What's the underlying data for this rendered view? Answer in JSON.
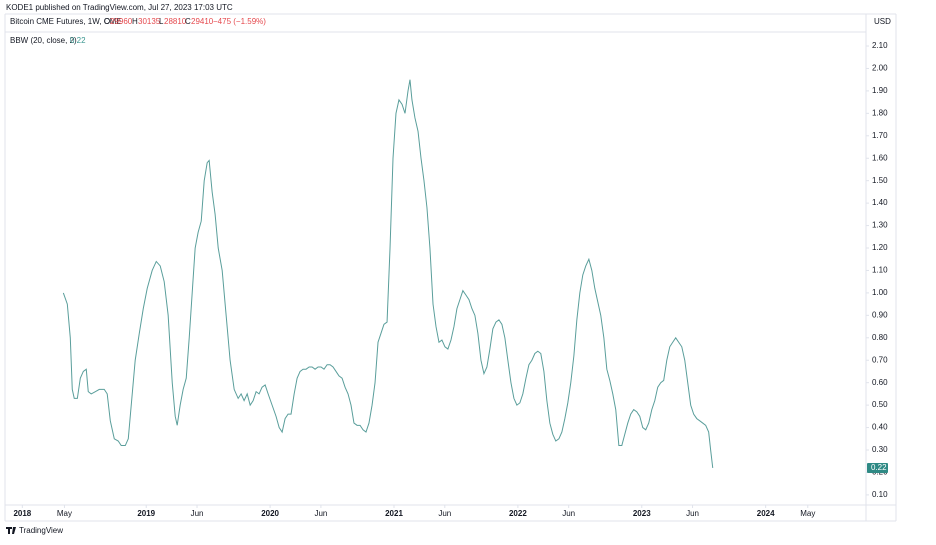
{
  "header": {
    "published": "KODE1 published on TradingView.com, Jul 27, 2023 17:03 UTC",
    "symbol": "Bitcoin CME Futures, 1W, CME",
    "open_label": "O",
    "open": 29960,
    "high_label": "H",
    "high": 30135,
    "low_label": "L",
    "low": 28810,
    "close_label": "C",
    "close": 29410,
    "change": "−475 (−1.59%)",
    "currency": "USD"
  },
  "footer": {
    "brand": "TradingView"
  },
  "chart_data": {
    "type": "line",
    "grid": false,
    "legend": "top-left",
    "x": [
      2018.331,
      2018.363,
      2018.387,
      2018.403,
      2018.419,
      2018.444,
      2018.468,
      2018.492,
      2018.516,
      2018.532,
      2018.556,
      2018.589,
      2018.621,
      2018.661,
      2018.685,
      2018.71,
      2018.742,
      2018.774,
      2018.798,
      2018.831,
      2018.855,
      2018.879,
      2018.911,
      2018.944,
      2018.976,
      2019.008,
      2019.048,
      2019.081,
      2019.113,
      2019.145,
      2019.177,
      2019.21,
      2019.234,
      2019.25,
      2019.274,
      2019.298,
      2019.323,
      2019.347,
      2019.371,
      2019.395,
      2019.419,
      2019.444,
      2019.468,
      2019.492,
      2019.508,
      2019.532,
      2019.556,
      2019.581,
      2019.613,
      2019.645,
      2019.677,
      2019.71,
      2019.742,
      2019.766,
      2019.79,
      2019.815,
      2019.839,
      2019.863,
      2019.887,
      2019.911,
      2019.935,
      2019.96,
      2019.984,
      2020.016,
      2020.048,
      2020.073,
      2020.097,
      2020.121,
      2020.145,
      2020.169,
      2020.194,
      2020.218,
      2020.242,
      2020.266,
      2020.29,
      2020.315,
      2020.339,
      2020.363,
      2020.387,
      2020.411,
      2020.435,
      2020.46,
      2020.484,
      2020.508,
      2020.532,
      2020.556,
      2020.581,
      2020.605,
      2020.629,
      2020.653,
      2020.677,
      2020.702,
      2020.726,
      2020.75,
      2020.774,
      2020.798,
      2020.823,
      2020.847,
      2020.871,
      2020.895,
      2020.919,
      2020.944,
      2020.968,
      2020.992,
      2021.016,
      2021.04,
      2021.065,
      2021.089,
      2021.113,
      2021.129,
      2021.145,
      2021.169,
      2021.194,
      2021.218,
      2021.242,
      2021.266,
      2021.29,
      2021.315,
      2021.339,
      2021.363,
      2021.387,
      2021.411,
      2021.435,
      2021.46,
      2021.484,
      2021.508,
      2021.532,
      2021.556,
      2021.581,
      2021.605,
      2021.629,
      2021.653,
      2021.677,
      2021.702,
      2021.726,
      2021.75,
      2021.774,
      2021.798,
      2021.823,
      2021.847,
      2021.871,
      2021.895,
      2021.919,
      2021.944,
      2021.968,
      2021.992,
      2022.016,
      2022.04,
      2022.065,
      2022.089,
      2022.113,
      2022.137,
      2022.161,
      2022.185,
      2022.21,
      2022.234,
      2022.258,
      2022.282,
      2022.306,
      2022.331,
      2022.355,
      2022.379,
      2022.403,
      2022.427,
      2022.452,
      2022.476,
      2022.5,
      2022.524,
      2022.548,
      2022.573,
      2022.597,
      2022.621,
      2022.645,
      2022.669,
      2022.694,
      2022.718,
      2022.742,
      2022.766,
      2022.79,
      2022.815,
      2022.839,
      2022.863,
      2022.887,
      2022.911,
      2022.935,
      2022.96,
      2022.984,
      2023.008,
      2023.032,
      2023.056,
      2023.081,
      2023.105,
      2023.129,
      2023.153,
      2023.177,
      2023.202,
      2023.226,
      2023.25,
      2023.274,
      2023.298,
      2023.323,
      2023.347,
      2023.371,
      2023.395,
      2023.419,
      2023.444,
      2023.468,
      2023.492,
      2023.516,
      2023.54,
      2023.556,
      2023.573
    ],
    "series": [
      {
        "name": "BBW (20, close, 2)",
        "color": "#5a9e9b",
        "values": [
          1.0,
          0.95,
          0.8,
          0.57,
          0.53,
          0.53,
          0.62,
          0.65,
          0.66,
          0.56,
          0.55,
          0.56,
          0.57,
          0.57,
          0.55,
          0.43,
          0.35,
          0.34,
          0.32,
          0.32,
          0.35,
          0.5,
          0.7,
          0.82,
          0.93,
          1.02,
          1.1,
          1.14,
          1.12,
          1.05,
          0.9,
          0.6,
          0.45,
          0.41,
          0.5,
          0.57,
          0.62,
          0.8,
          1.0,
          1.2,
          1.27,
          1.32,
          1.5,
          1.58,
          1.59,
          1.45,
          1.35,
          1.2,
          1.1,
          0.9,
          0.7,
          0.57,
          0.53,
          0.55,
          0.52,
          0.55,
          0.5,
          0.52,
          0.56,
          0.55,
          0.58,
          0.59,
          0.55,
          0.5,
          0.45,
          0.4,
          0.38,
          0.44,
          0.46,
          0.46,
          0.55,
          0.62,
          0.65,
          0.66,
          0.66,
          0.67,
          0.67,
          0.66,
          0.67,
          0.67,
          0.66,
          0.68,
          0.68,
          0.67,
          0.65,
          0.63,
          0.62,
          0.58,
          0.55,
          0.5,
          0.42,
          0.41,
          0.41,
          0.39,
          0.38,
          0.42,
          0.5,
          0.6,
          0.78,
          0.82,
          0.86,
          0.87,
          1.2,
          1.6,
          1.8,
          1.86,
          1.84,
          1.8,
          1.9,
          1.95,
          1.86,
          1.78,
          1.72,
          1.6,
          1.5,
          1.38,
          1.2,
          0.95,
          0.85,
          0.78,
          0.79,
          0.76,
          0.75,
          0.79,
          0.85,
          0.93,
          0.97,
          1.01,
          0.99,
          0.97,
          0.93,
          0.9,
          0.82,
          0.7,
          0.64,
          0.67,
          0.75,
          0.84,
          0.87,
          0.88,
          0.86,
          0.8,
          0.7,
          0.6,
          0.53,
          0.5,
          0.51,
          0.55,
          0.62,
          0.68,
          0.7,
          0.73,
          0.74,
          0.73,
          0.65,
          0.52,
          0.42,
          0.37,
          0.34,
          0.35,
          0.38,
          0.44,
          0.51,
          0.6,
          0.72,
          0.88,
          1.0,
          1.08,
          1.12,
          1.15,
          1.1,
          1.02,
          0.96,
          0.9,
          0.8,
          0.66,
          0.61,
          0.55,
          0.48,
          0.32,
          0.32,
          0.37,
          0.42,
          0.46,
          0.48,
          0.47,
          0.45,
          0.4,
          0.39,
          0.42,
          0.48,
          0.52,
          0.58,
          0.6,
          0.61,
          0.7,
          0.76,
          0.78,
          0.8,
          0.78,
          0.76,
          0.7,
          0.6,
          0.5,
          0.46,
          0.44,
          0.43,
          0.42,
          0.41,
          0.38,
          0.3,
          0.22
        ]
      }
    ],
    "xlim": [
      2017.86,
      2024.81
    ],
    "xticks": [
      {
        "value": 2018,
        "label": "2018"
      },
      {
        "value": 2018.34,
        "label": "May"
      },
      {
        "value": 2019,
        "label": "2019"
      },
      {
        "value": 2019.41,
        "label": "Jun"
      },
      {
        "value": 2020,
        "label": "2020"
      },
      {
        "value": 2020.41,
        "label": "Jun"
      },
      {
        "value": 2021,
        "label": "2021"
      },
      {
        "value": 2021.41,
        "label": "Jun"
      },
      {
        "value": 2022,
        "label": "2022"
      },
      {
        "value": 2022.41,
        "label": "Jun"
      },
      {
        "value": 2023,
        "label": "2023"
      },
      {
        "value": 2023.41,
        "label": "Jun"
      },
      {
        "value": 2024,
        "label": "2024"
      },
      {
        "value": 2024.34,
        "label": "May"
      }
    ],
    "ylim": [
      0.055,
      2.158
    ],
    "yticks": [
      {
        "value": 0.1,
        "label": "0.10"
      },
      {
        "value": 0.2,
        "label": "0.20"
      },
      {
        "value": 0.3,
        "label": "0.30"
      },
      {
        "value": 0.4,
        "label": "0.40"
      },
      {
        "value": 0.5,
        "label": "0.50"
      },
      {
        "value": 0.6,
        "label": "0.60"
      },
      {
        "value": 0.7,
        "label": "0.70"
      },
      {
        "value": 0.8,
        "label": "0.80"
      },
      {
        "value": 0.9,
        "label": "0.90"
      },
      {
        "value": 1.0,
        "label": "1.00"
      },
      {
        "value": 1.1,
        "label": "1.10"
      },
      {
        "value": 1.2,
        "label": "1.20"
      },
      {
        "value": 1.3,
        "label": "1.30"
      },
      {
        "value": 1.4,
        "label": "1.40"
      },
      {
        "value": 1.5,
        "label": "1.50"
      },
      {
        "value": 1.6,
        "label": "1.60"
      },
      {
        "value": 1.7,
        "label": "1.70"
      },
      {
        "value": 1.8,
        "label": "1.80"
      },
      {
        "value": 1.9,
        "label": "1.90"
      },
      {
        "value": 2.0,
        "label": "2.00"
      },
      {
        "value": 2.1,
        "label": "2.10"
      }
    ]
  }
}
